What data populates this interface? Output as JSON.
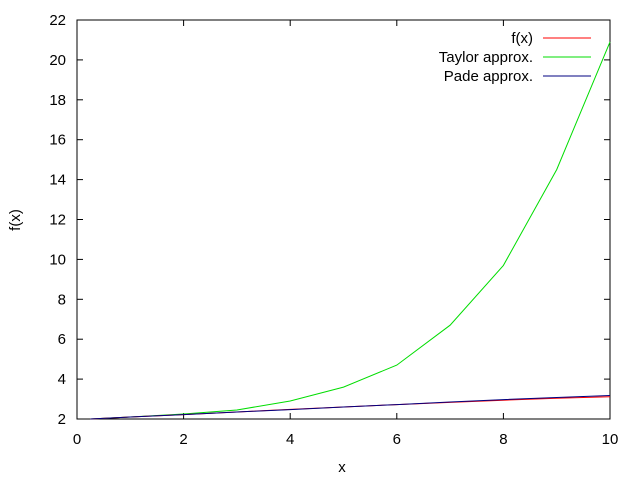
{
  "chart_data": {
    "type": "line",
    "title": "",
    "xlabel": "x",
    "ylabel": "f(x)",
    "xlim": [
      0,
      10
    ],
    "ylim": [
      2,
      22
    ],
    "xticks": [
      0,
      2,
      4,
      6,
      8,
      10
    ],
    "yticks": [
      2,
      4,
      6,
      8,
      10,
      12,
      14,
      16,
      18,
      20,
      22
    ],
    "grid": false,
    "legend_position": "top-right",
    "series": [
      {
        "name": "f(x)",
        "color": "#ff0000",
        "x": [
          0.25,
          1,
          2,
          3,
          4,
          5,
          6,
          7,
          8,
          9,
          10
        ],
        "y": [
          2.0,
          2.1,
          2.22,
          2.35,
          2.48,
          2.6,
          2.72,
          2.83,
          2.94,
          3.04,
          3.12
        ]
      },
      {
        "name": "Taylor approx.",
        "color": "#00dd00",
        "x": [
          0.25,
          1,
          2,
          3,
          4,
          5,
          6,
          7,
          8,
          9,
          10
        ],
        "y": [
          2.0,
          2.1,
          2.25,
          2.45,
          2.9,
          3.6,
          4.7,
          6.7,
          9.7,
          14.5,
          20.9
        ]
      },
      {
        "name": "Pade approx.",
        "color": "#000080",
        "x": [
          0.25,
          1,
          2,
          3,
          4,
          5,
          6,
          7,
          8,
          9,
          10
        ],
        "y": [
          2.0,
          2.1,
          2.22,
          2.35,
          2.47,
          2.6,
          2.72,
          2.85,
          2.97,
          3.08,
          3.18
        ]
      }
    ]
  }
}
